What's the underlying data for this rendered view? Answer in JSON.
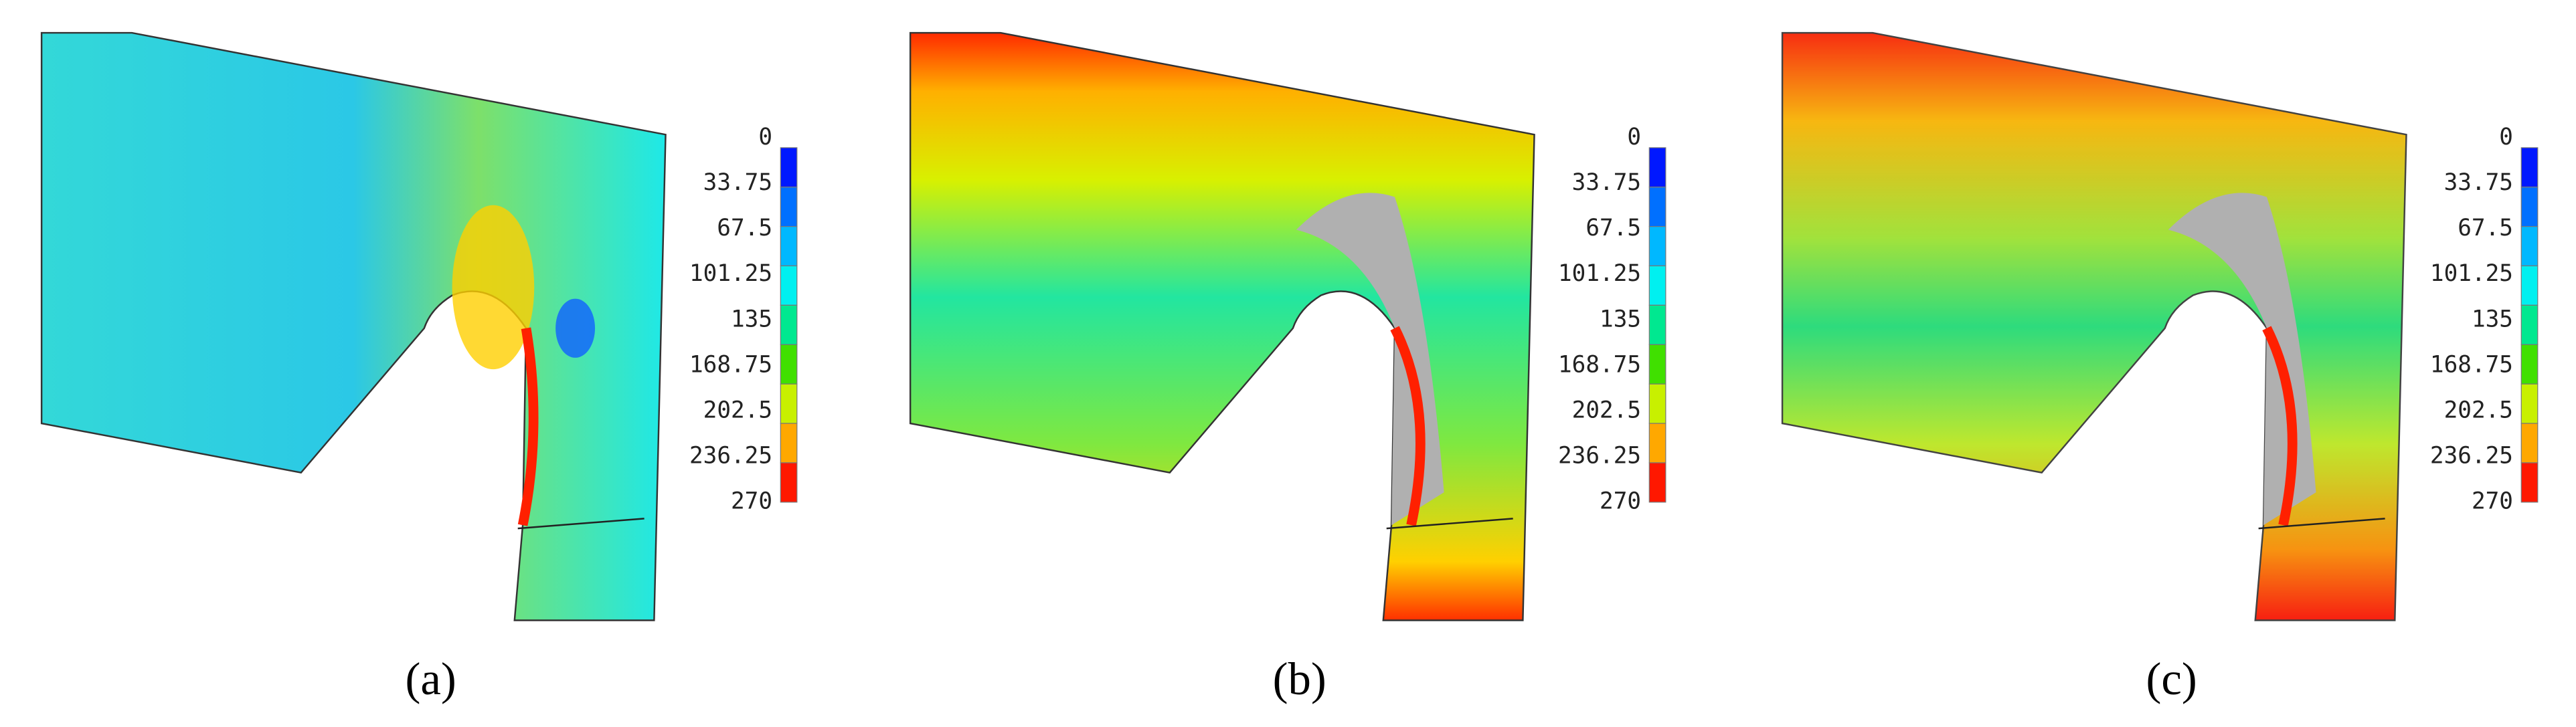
{
  "figure": {
    "panels": [
      {
        "label": "(a)",
        "colorbar_ticks": [
          0,
          33.75,
          67.5,
          101.25,
          135,
          168.75,
          202.5,
          236.25,
          270
        ]
      },
      {
        "label": "(b)",
        "colorbar_ticks": [
          0,
          33.75,
          67.5,
          101.25,
          135,
          168.75,
          202.5,
          236.25,
          270
        ]
      },
      {
        "label": "(c)",
        "colorbar_ticks": [
          0,
          33.75,
          67.5,
          101.25,
          135,
          168.75,
          202.5,
          236.25,
          270
        ]
      }
    ]
  }
}
